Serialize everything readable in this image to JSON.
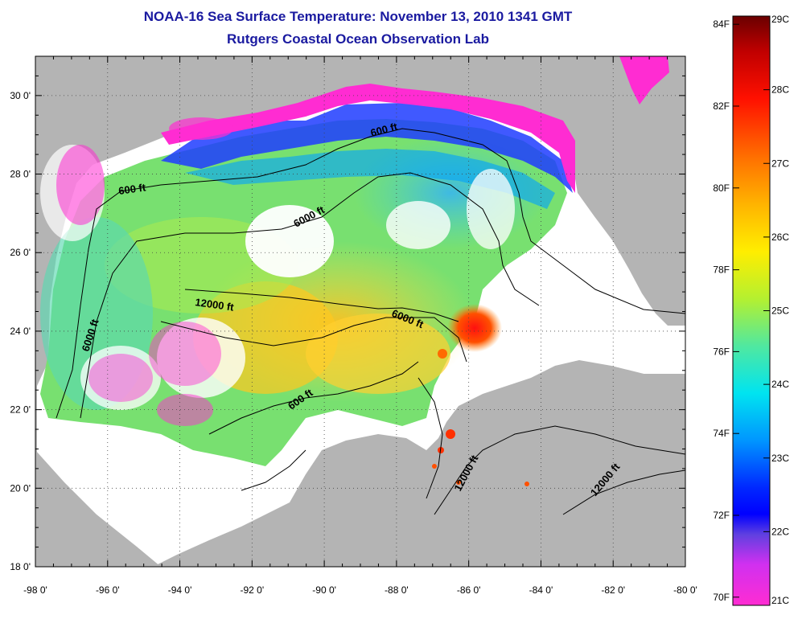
{
  "title": "NOAA-16 Sea Surface Temperature:  November 13, 2010 1341 GMT",
  "subtitle": "Rutgers Coastal Ocean Observation Lab",
  "map": {
    "lon_range": [
      -98,
      -80
    ],
    "lat_range": [
      18,
      31
    ],
    "lon_ticks": [
      "-98 0'",
      "-96 0'",
      "-94 0'",
      "-92 0'",
      "-90 0'",
      "-88 0'",
      "-86 0'",
      "-84 0'",
      "-82 0'",
      "-80 0'"
    ],
    "lat_ticks": [
      "18 0'",
      "20 0'",
      "22 0'",
      "24 0'",
      "26 0'",
      "28 0'",
      "30 0'"
    ],
    "grid": "dotted",
    "land_color": "#b4b4b4",
    "cloud_color": "#ffffff",
    "contour_labels": [
      "600 ft",
      "600 ft",
      "600 ft",
      "6000 ft",
      "6000 ft",
      "6000 ft",
      "12000 ft",
      "12000 ft",
      "12000 ft"
    ]
  },
  "colorbar": {
    "celsius_labels": [
      "29C",
      "28C",
      "27C",
      "26C",
      "25C",
      "24C",
      "23C",
      "22C",
      "21C"
    ],
    "fahrenheit_labels": [
      "84F",
      "82F",
      "80F",
      "78F",
      "76F",
      "74F",
      "72F",
      "70F"
    ],
    "celsius_min": 21,
    "celsius_max": 29
  }
}
